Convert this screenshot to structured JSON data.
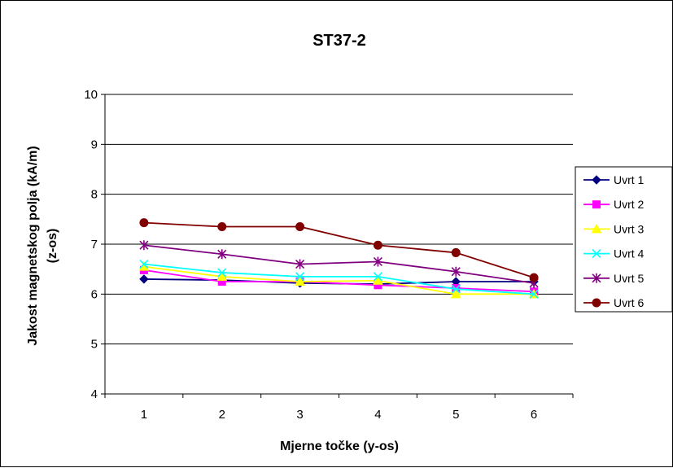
{
  "chart_data": {
    "type": "line",
    "title": "ST37-2",
    "xlabel": "Mjerne točke (y-os)",
    "ylabel_line1": "Jakost magnetskog polja (kA/m)",
    "ylabel_line2": "(z-os)",
    "x": [
      1,
      2,
      3,
      4,
      5,
      6
    ],
    "x_tick_labels": [
      "1",
      "2",
      "3",
      "4",
      "5",
      "6"
    ],
    "ylim": [
      4,
      10
    ],
    "y_tick_labels": [
      "4",
      "5",
      "6",
      "7",
      "8",
      "9",
      "10"
    ],
    "grid": "horizontal",
    "legend_position": "right",
    "series": [
      {
        "name": "Uvrt 1",
        "color": "#000080",
        "marker": "diamond",
        "values": [
          6.3,
          6.28,
          6.22,
          6.2,
          6.25,
          6.25
        ]
      },
      {
        "name": "Uvrt 2",
        "color": "#FF00FF",
        "marker": "square",
        "values": [
          6.48,
          6.25,
          6.25,
          6.18,
          6.12,
          6.05
        ]
      },
      {
        "name": "Uvrt 3",
        "color": "#FFFF00",
        "marker": "triangle",
        "values": [
          6.55,
          6.35,
          6.25,
          6.27,
          6.0,
          6.0
        ]
      },
      {
        "name": "Uvrt 4",
        "color": "#00FFFF",
        "marker": "x",
        "values": [
          6.6,
          6.43,
          6.35,
          6.35,
          6.1,
          6.0
        ]
      },
      {
        "name": "Uvrt 5",
        "color": "#800080",
        "marker": "asterisk",
        "values": [
          6.98,
          6.8,
          6.6,
          6.65,
          6.45,
          6.22
        ]
      },
      {
        "name": "Uvrt 6",
        "color": "#800000",
        "marker": "circle",
        "values": [
          7.43,
          7.35,
          7.35,
          6.98,
          6.83,
          6.33
        ]
      }
    ]
  }
}
